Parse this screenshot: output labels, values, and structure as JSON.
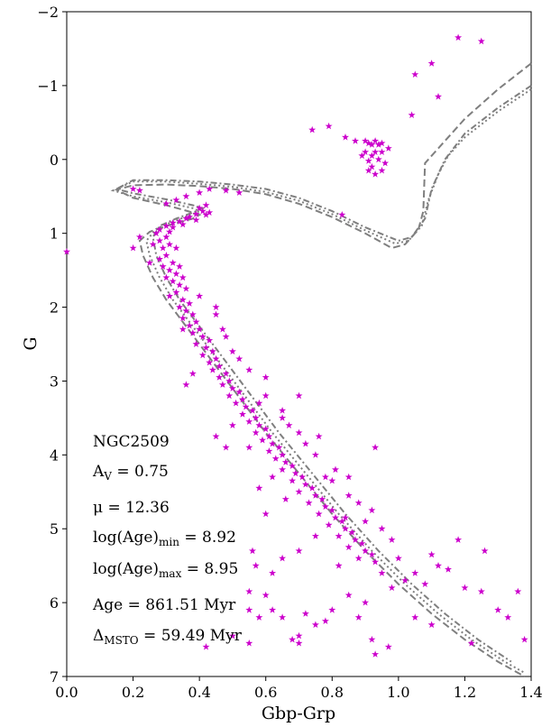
{
  "chart_data": {
    "type": "scatter",
    "xlabel": "Gbp-Grp",
    "ylabel": "G",
    "xlim": [
      0.0,
      1.4
    ],
    "ylim": [
      7,
      -2
    ],
    "y_inverted": true,
    "grid": false,
    "legend": "none",
    "xticks": [
      "0.0",
      "0.2",
      "0.4",
      "0.6",
      "0.8",
      "1.0",
      "1.2",
      "1.4"
    ],
    "yticks": [
      "−2",
      "−1",
      "0",
      "1",
      "2",
      "3",
      "4",
      "5",
      "6",
      "7"
    ],
    "colors": {
      "stars": "#cc00cc",
      "isochrone": "#7f7f7f"
    },
    "annotations": {
      "cluster": "NGC2509",
      "av_main": "A",
      "av_sub": "V",
      "av_rest": " = 0.75",
      "mu_main": "μ = 12.36",
      "agemin_main": "log(Age)",
      "agemin_sub": "min",
      "agemin_rest": " = 8.92",
      "agemax_main": "log(Age)",
      "agemax_sub": "max",
      "agemax_rest": " = 8.95",
      "age_main": "Age = 861.51 Myr",
      "msto_main": "Δ",
      "msto_sub": "MSTO",
      "msto_rest": " = 59.49 Myr"
    },
    "isochrones": [
      {
        "style": "dashed",
        "points": [
          [
            1.4,
            -1.3
          ],
          [
            1.3,
            -0.95
          ],
          [
            1.2,
            -0.55
          ],
          [
            1.12,
            -0.15
          ],
          [
            1.08,
            0.05
          ],
          [
            1.075,
            0.7
          ],
          [
            1.06,
            0.95
          ],
          [
            1.02,
            1.15
          ],
          [
            0.98,
            1.2
          ],
          [
            0.9,
            1.0
          ],
          [
            0.8,
            0.78
          ],
          [
            0.7,
            0.6
          ],
          [
            0.6,
            0.47
          ],
          [
            0.5,
            0.4
          ],
          [
            0.4,
            0.36
          ],
          [
            0.3,
            0.34
          ],
          [
            0.2,
            0.35
          ],
          [
            0.15,
            0.41
          ],
          [
            0.2,
            0.52
          ],
          [
            0.3,
            0.62
          ],
          [
            0.35,
            0.68
          ],
          [
            0.38,
            0.72
          ],
          [
            0.4,
            0.75
          ],
          [
            0.38,
            0.8
          ],
          [
            0.3,
            0.9
          ],
          [
            0.25,
            0.98
          ],
          [
            0.22,
            1.1
          ],
          [
            0.23,
            1.3
          ],
          [
            0.26,
            1.6
          ],
          [
            0.3,
            1.9
          ],
          [
            0.4,
            2.5
          ],
          [
            0.5,
            3.1
          ],
          [
            0.6,
            3.7
          ],
          [
            0.7,
            4.25
          ],
          [
            0.8,
            4.8
          ],
          [
            0.9,
            5.3
          ],
          [
            1.0,
            5.75
          ],
          [
            1.1,
            6.15
          ],
          [
            1.2,
            6.5
          ],
          [
            1.3,
            6.8
          ],
          [
            1.38,
            7.0
          ]
        ]
      },
      {
        "style": "dotted",
        "points": [
          [
            1.4,
            -0.95
          ],
          [
            1.3,
            -0.65
          ],
          [
            1.2,
            -0.3
          ],
          [
            1.15,
            -0.05
          ],
          [
            1.12,
            0.2
          ],
          [
            1.09,
            0.55
          ],
          [
            1.07,
            0.9
          ],
          [
            1.03,
            1.1
          ],
          [
            0.99,
            1.14
          ],
          [
            0.9,
            0.96
          ],
          [
            0.8,
            0.74
          ],
          [
            0.7,
            0.56
          ],
          [
            0.6,
            0.44
          ],
          [
            0.5,
            0.37
          ],
          [
            0.4,
            0.33
          ],
          [
            0.3,
            0.3
          ],
          [
            0.2,
            0.3
          ],
          [
            0.14,
            0.42
          ],
          [
            0.2,
            0.5
          ],
          [
            0.3,
            0.58
          ],
          [
            0.38,
            0.66
          ],
          [
            0.4,
            0.7
          ],
          [
            0.37,
            0.76
          ],
          [
            0.32,
            0.84
          ],
          [
            0.27,
            0.94
          ],
          [
            0.24,
            1.1
          ],
          [
            0.25,
            1.3
          ],
          [
            0.28,
            1.6
          ],
          [
            0.32,
            1.9
          ],
          [
            0.42,
            2.5
          ],
          [
            0.52,
            3.1
          ],
          [
            0.62,
            3.7
          ],
          [
            0.72,
            4.25
          ],
          [
            0.82,
            4.8
          ],
          [
            0.92,
            5.3
          ],
          [
            1.02,
            5.75
          ],
          [
            1.12,
            6.15
          ],
          [
            1.22,
            6.5
          ],
          [
            1.32,
            6.8
          ],
          [
            1.38,
            6.95
          ]
        ]
      },
      {
        "style": "dashdot",
        "points": [
          [
            1.4,
            -1.0
          ],
          [
            1.3,
            -0.7
          ],
          [
            1.2,
            -0.35
          ],
          [
            1.14,
            0.0
          ],
          [
            1.1,
            0.4
          ],
          [
            1.08,
            0.8
          ],
          [
            1.04,
            1.05
          ],
          [
            1.0,
            1.1
          ],
          [
            0.9,
            0.92
          ],
          [
            0.8,
            0.7
          ],
          [
            0.7,
            0.52
          ],
          [
            0.6,
            0.4
          ],
          [
            0.5,
            0.34
          ],
          [
            0.4,
            0.3
          ],
          [
            0.3,
            0.28
          ],
          [
            0.2,
            0.28
          ],
          [
            0.15,
            0.4
          ],
          [
            0.2,
            0.46
          ],
          [
            0.3,
            0.54
          ],
          [
            0.38,
            0.62
          ],
          [
            0.41,
            0.66
          ],
          [
            0.38,
            0.72
          ],
          [
            0.33,
            0.8
          ],
          [
            0.28,
            0.9
          ],
          [
            0.26,
            1.05
          ],
          [
            0.27,
            1.3
          ],
          [
            0.3,
            1.6
          ],
          [
            0.34,
            1.9
          ],
          [
            0.44,
            2.5
          ],
          [
            0.54,
            3.1
          ],
          [
            0.64,
            3.7
          ],
          [
            0.74,
            4.25
          ],
          [
            0.84,
            4.8
          ],
          [
            0.94,
            5.3
          ],
          [
            1.04,
            5.75
          ],
          [
            1.14,
            6.15
          ],
          [
            1.24,
            6.5
          ],
          [
            1.34,
            6.8
          ]
        ]
      }
    ],
    "stars": [
      [
        1.18,
        -1.65
      ],
      [
        1.25,
        -1.6
      ],
      [
        1.1,
        -1.3
      ],
      [
        1.05,
        -1.15
      ],
      [
        1.12,
        -0.85
      ],
      [
        1.04,
        -0.6
      ],
      [
        0.74,
        -0.4
      ],
      [
        0.79,
        -0.45
      ],
      [
        0.84,
        -0.3
      ],
      [
        0.87,
        -0.25
      ],
      [
        0.9,
        -0.25
      ],
      [
        0.91,
        -0.22
      ],
      [
        0.92,
        -0.2
      ],
      [
        0.93,
        -0.25
      ],
      [
        0.94,
        -0.2
      ],
      [
        0.95,
        -0.22
      ],
      [
        0.9,
        -0.1
      ],
      [
        0.92,
        -0.05
      ],
      [
        0.93,
        -0.1
      ],
      [
        0.95,
        -0.1
      ],
      [
        0.91,
        0.02
      ],
      [
        0.94,
        0.0
      ],
      [
        0.96,
        0.05
      ],
      [
        0.92,
        0.1
      ],
      [
        0.95,
        0.15
      ],
      [
        0.91,
        0.15
      ],
      [
        0.93,
        0.2
      ],
      [
        0.89,
        -0.05
      ],
      [
        0.97,
        -0.15
      ],
      [
        0.83,
        0.75
      ],
      [
        0.0,
        1.25
      ],
      [
        0.3,
        0.6
      ],
      [
        0.33,
        0.55
      ],
      [
        0.36,
        0.5
      ],
      [
        0.4,
        0.45
      ],
      [
        0.43,
        0.4
      ],
      [
        0.48,
        0.42
      ],
      [
        0.52,
        0.45
      ],
      [
        0.42,
        0.62
      ],
      [
        0.4,
        0.66
      ],
      [
        0.41,
        0.7
      ],
      [
        0.43,
        0.72
      ],
      [
        0.39,
        0.74
      ],
      [
        0.42,
        0.75
      ],
      [
        0.37,
        0.78
      ],
      [
        0.36,
        0.8
      ],
      [
        0.39,
        0.82
      ],
      [
        0.34,
        0.84
      ],
      [
        0.32,
        0.86
      ],
      [
        0.35,
        0.88
      ],
      [
        0.3,
        0.9
      ],
      [
        0.32,
        0.92
      ],
      [
        0.28,
        0.95
      ],
      [
        0.31,
        0.98
      ],
      [
        0.27,
        1.0
      ],
      [
        0.3,
        1.05
      ],
      [
        0.28,
        1.1
      ],
      [
        0.26,
        1.15
      ],
      [
        0.31,
        1.15
      ],
      [
        0.29,
        1.2
      ],
      [
        0.33,
        1.2
      ],
      [
        0.3,
        1.3
      ],
      [
        0.28,
        1.35
      ],
      [
        0.32,
        1.4
      ],
      [
        0.29,
        1.45
      ],
      [
        0.34,
        1.45
      ],
      [
        0.31,
        1.5
      ],
      [
        0.33,
        1.55
      ],
      [
        0.3,
        1.6
      ],
      [
        0.35,
        1.6
      ],
      [
        0.32,
        1.65
      ],
      [
        0.34,
        1.7
      ],
      [
        0.36,
        1.75
      ],
      [
        0.33,
        1.8
      ],
      [
        0.31,
        1.85
      ],
      [
        0.35,
        1.9
      ],
      [
        0.37,
        1.95
      ],
      [
        0.34,
        2.0
      ],
      [
        0.36,
        2.05
      ],
      [
        0.38,
        2.1
      ],
      [
        0.35,
        2.15
      ],
      [
        0.39,
        2.2
      ],
      [
        0.37,
        2.25
      ],
      [
        0.4,
        2.3
      ],
      [
        0.38,
        2.35
      ],
      [
        0.41,
        2.4
      ],
      [
        0.43,
        2.45
      ],
      [
        0.39,
        2.5
      ],
      [
        0.42,
        2.55
      ],
      [
        0.44,
        2.6
      ],
      [
        0.41,
        2.65
      ],
      [
        0.45,
        2.7
      ],
      [
        0.43,
        2.75
      ],
      [
        0.46,
        2.8
      ],
      [
        0.44,
        2.85
      ],
      [
        0.48,
        2.9
      ],
      [
        0.46,
        2.95
      ],
      [
        0.49,
        3.0
      ],
      [
        0.47,
        3.05
      ],
      [
        0.5,
        3.1
      ],
      [
        0.52,
        3.15
      ],
      [
        0.49,
        3.2
      ],
      [
        0.53,
        3.25
      ],
      [
        0.51,
        3.3
      ],
      [
        0.54,
        3.35
      ],
      [
        0.56,
        3.4
      ],
      [
        0.53,
        3.45
      ],
      [
        0.57,
        3.5
      ],
      [
        0.55,
        3.55
      ],
      [
        0.58,
        3.6
      ],
      [
        0.6,
        3.65
      ],
      [
        0.57,
        3.7
      ],
      [
        0.61,
        3.75
      ],
      [
        0.59,
        3.8
      ],
      [
        0.62,
        3.85
      ],
      [
        0.64,
        3.9
      ],
      [
        0.61,
        3.95
      ],
      [
        0.65,
        4.0
      ],
      [
        0.63,
        4.05
      ],
      [
        0.66,
        4.1
      ],
      [
        0.68,
        4.15
      ],
      [
        0.65,
        4.2
      ],
      [
        0.69,
        4.25
      ],
      [
        0.71,
        4.3
      ],
      [
        0.68,
        4.35
      ],
      [
        0.72,
        4.4
      ],
      [
        0.74,
        4.45
      ],
      [
        0.7,
        4.5
      ],
      [
        0.75,
        4.55
      ],
      [
        0.77,
        4.6
      ],
      [
        0.73,
        4.65
      ],
      [
        0.78,
        4.7
      ],
      [
        0.8,
        4.75
      ],
      [
        0.76,
        4.8
      ],
      [
        0.81,
        4.85
      ],
      [
        0.83,
        4.9
      ],
      [
        0.79,
        4.95
      ],
      [
        0.84,
        5.0
      ],
      [
        0.86,
        5.05
      ],
      [
        0.82,
        5.1
      ],
      [
        0.87,
        5.15
      ],
      [
        0.89,
        5.2
      ],
      [
        0.85,
        5.25
      ],
      [
        0.9,
        5.3
      ],
      [
        0.92,
        5.35
      ],
      [
        0.88,
        5.4
      ],
      [
        0.93,
        5.45
      ],
      [
        0.2,
        0.4
      ],
      [
        0.22,
        0.42
      ],
      [
        0.2,
        1.2
      ],
      [
        0.22,
        1.05
      ],
      [
        0.25,
        1.4
      ],
      [
        0.4,
        1.85
      ],
      [
        0.45,
        2.0
      ],
      [
        0.47,
        2.3
      ],
      [
        0.5,
        2.6
      ],
      [
        0.35,
        2.3
      ],
      [
        0.38,
        2.9
      ],
      [
        0.36,
        3.05
      ],
      [
        0.45,
        2.1
      ],
      [
        0.55,
        2.85
      ],
      [
        0.6,
        3.2
      ],
      [
        0.65,
        3.4
      ],
      [
        0.7,
        3.2
      ],
      [
        0.67,
        3.6
      ],
      [
        0.72,
        3.85
      ],
      [
        0.75,
        4.0
      ],
      [
        0.78,
        4.3
      ],
      [
        0.8,
        4.35
      ],
      [
        0.5,
        3.6
      ],
      [
        0.55,
        3.9
      ],
      [
        0.45,
        3.75
      ],
      [
        0.48,
        3.9
      ],
      [
        0.62,
        4.3
      ],
      [
        0.66,
        4.6
      ],
      [
        0.58,
        4.45
      ],
      [
        0.6,
        4.8
      ],
      [
        0.85,
        4.55
      ],
      [
        0.88,
        4.65
      ],
      [
        0.9,
        4.9
      ],
      [
        0.84,
        4.85
      ],
      [
        0.93,
        3.9
      ],
      [
        0.92,
        4.75
      ],
      [
        0.95,
        5.0
      ],
      [
        0.98,
        5.15
      ],
      [
        1.0,
        5.4
      ],
      [
        1.05,
        5.6
      ],
      [
        1.08,
        5.75
      ],
      [
        1.12,
        5.5
      ],
      [
        1.15,
        5.55
      ],
      [
        1.2,
        5.8
      ],
      [
        1.25,
        5.85
      ],
      [
        1.3,
        6.1
      ],
      [
        1.33,
        6.2
      ],
      [
        1.36,
        5.85
      ],
      [
        1.38,
        6.5
      ],
      [
        1.26,
        5.3
      ],
      [
        1.18,
        5.15
      ],
      [
        1.1,
        5.35
      ],
      [
        1.02,
        5.7
      ],
      [
        0.95,
        5.6
      ],
      [
        0.98,
        5.8
      ],
      [
        0.9,
        6.0
      ],
      [
        0.88,
        6.2
      ],
      [
        0.85,
        5.9
      ],
      [
        0.8,
        6.1
      ],
      [
        0.78,
        6.25
      ],
      [
        0.75,
        6.3
      ],
      [
        0.72,
        6.15
      ],
      [
        0.7,
        6.45
      ],
      [
        0.68,
        6.5
      ],
      [
        0.7,
        6.55
      ],
      [
        0.65,
        6.2
      ],
      [
        0.6,
        5.9
      ],
      [
        0.57,
        5.5
      ],
      [
        0.55,
        5.85
      ],
      [
        0.58,
        6.2
      ],
      [
        0.55,
        6.1
      ],
      [
        0.62,
        6.1
      ],
      [
        0.56,
        5.3
      ],
      [
        0.62,
        5.6
      ],
      [
        0.65,
        5.4
      ],
      [
        0.7,
        5.3
      ],
      [
        0.75,
        5.1
      ],
      [
        0.82,
        5.5
      ],
      [
        0.55,
        6.55
      ],
      [
        0.5,
        6.45
      ],
      [
        0.42,
        6.6
      ],
      [
        0.92,
        6.5
      ],
      [
        0.93,
        6.7
      ],
      [
        0.97,
        6.6
      ],
      [
        1.05,
        6.2
      ],
      [
        1.1,
        6.3
      ],
      [
        1.22,
        6.55
      ],
      [
        0.85,
        4.3
      ],
      [
        0.81,
        4.2
      ],
      [
        0.76,
        3.75
      ],
      [
        0.7,
        3.7
      ],
      [
        0.65,
        3.5
      ],
      [
        0.6,
        2.95
      ],
      [
        0.58,
        3.3
      ],
      [
        0.52,
        2.7
      ],
      [
        0.48,
        2.4
      ]
    ]
  }
}
